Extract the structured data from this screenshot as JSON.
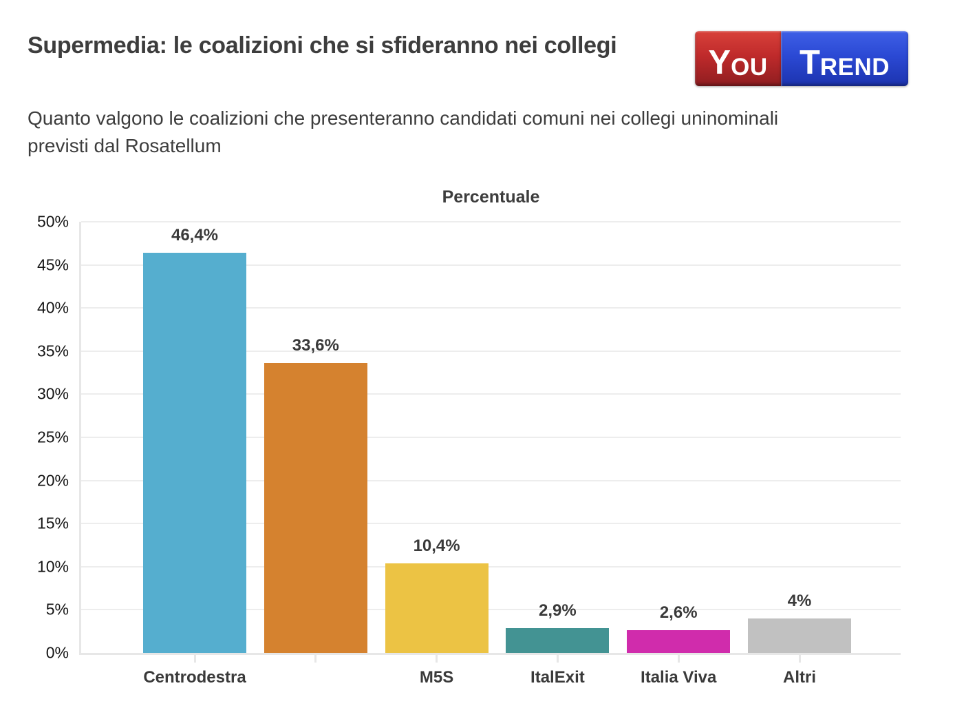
{
  "header": {
    "title": "Supermedia: le coalizioni che si sfideranno nei collegi",
    "subtitle": "Quanto valgono le coalizioni che presenteranno candidati comuni nei collegi uninominali previsti dal Rosatellum"
  },
  "logo": {
    "text_left": "You",
    "text_right": "Trend",
    "left_bg": "#bf2a2b",
    "right_bg": "#2b49d4",
    "text_color": "#ffffff"
  },
  "chart_data": {
    "type": "bar",
    "title": "Percentuale",
    "categories": [
      "Centrodestra",
      "",
      "M5S",
      "ItalExit",
      "Italia Viva",
      "Altri"
    ],
    "values": [
      46.4,
      33.6,
      10.4,
      2.9,
      2.6,
      4
    ],
    "value_labels": [
      "46,4%",
      "33,6%",
      "10,4%",
      "2,9%",
      "2,6%",
      "4%"
    ],
    "bar_colors": [
      "#55aecf",
      "#d5822f",
      "#ecc344",
      "#439393",
      "#d02cac",
      "#c1c1c1"
    ],
    "xlabel": "",
    "ylabel": "",
    "ylim": [
      0,
      50
    ],
    "ytick_step": 5,
    "ytick_labels": [
      "0%",
      "5%",
      "10%",
      "15%",
      "20%",
      "25%",
      "30%",
      "35%",
      "40%",
      "45%",
      "50%"
    ],
    "grid": true,
    "legend": false
  }
}
